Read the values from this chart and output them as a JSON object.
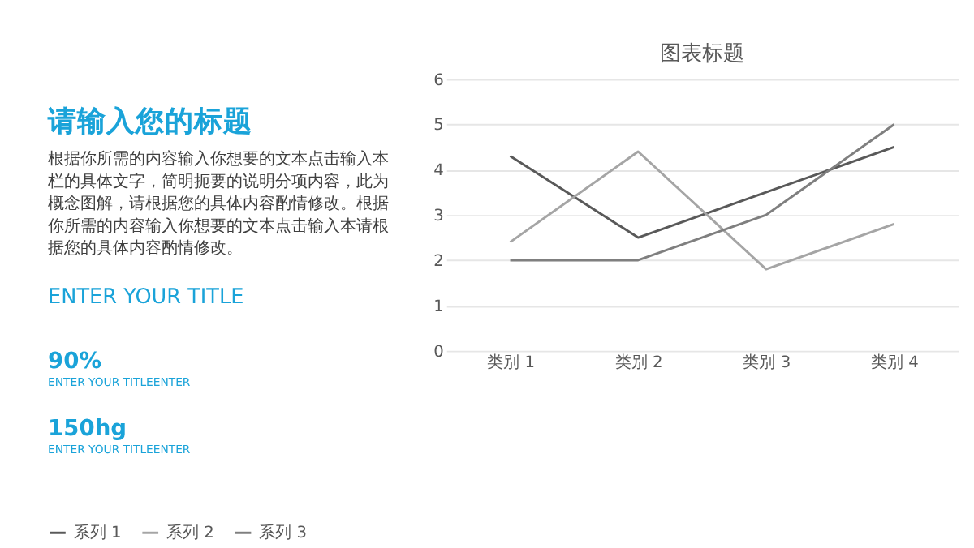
{
  "chart_data": {
    "type": "line",
    "title": "图表标题",
    "categories": [
      "类别 1",
      "类别 2",
      "类别 3",
      "类别 4"
    ],
    "series": [
      {
        "name": "系列 1",
        "color": "#595959",
        "values": [
          4.3,
          2.5,
          3.5,
          4.5
        ]
      },
      {
        "name": "系列 2",
        "color": "#a5a5a5",
        "values": [
          2.4,
          4.4,
          1.8,
          2.8
        ]
      },
      {
        "name": "系列 3",
        "color": "#7f7f7f",
        "values": [
          2,
          2,
          3,
          5
        ]
      }
    ],
    "ylim": [
      0,
      6
    ],
    "yticks": [
      0,
      1,
      2,
      3,
      4,
      5,
      6
    ],
    "grid": "y",
    "legend": "bottom",
    "marker": "none",
    "line_style": "solid",
    "annotations": [
      "请输入您的标题",
      "根据你所需的内容输入你想要的文本点击输入本栏的具体文字，简明扼要的说明分项内容，此为概念图解，请根据您的具体内容酌情修改。根据你所需的内容输入你想要的文本点击输入本请根据您的具体内容酌情修改。",
      "ENTER YOUR TITLE",
      "90%",
      "ENTER YOUR TITLEENTER",
      "150hg",
      "ENTER YOUR TITLEENTER"
    ]
  }
}
